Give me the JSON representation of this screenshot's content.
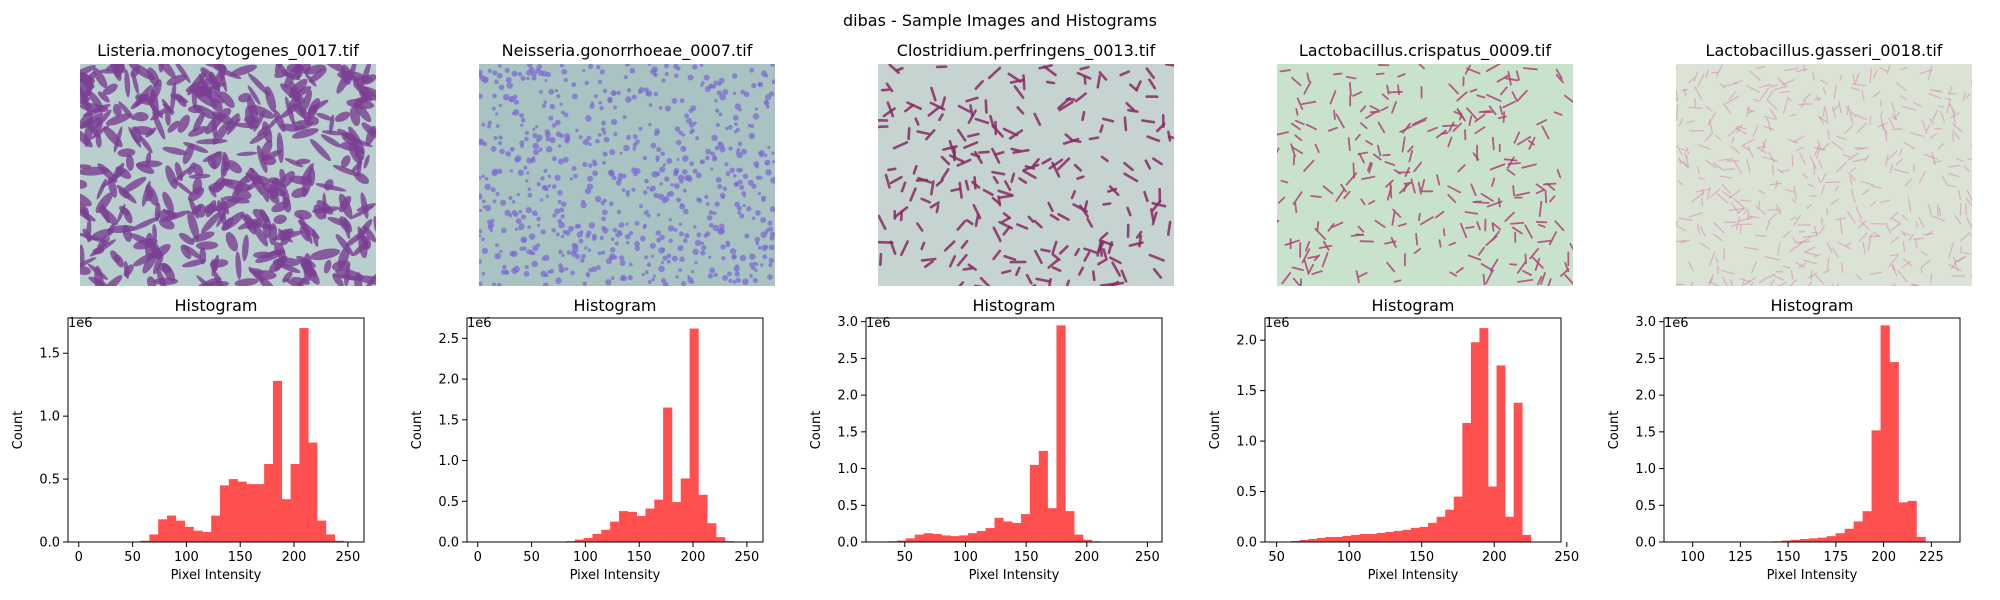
{
  "figure_title": "dibas - Sample Images and Histograms",
  "panels": [
    {
      "image_title": "Listeria.monocytogenes_0017.tif",
      "image_style": {
        "bg": "#b9cfcd",
        "stain": "#7a3f92",
        "pattern": "network"
      },
      "chart_data": {
        "type": "bar",
        "title": "Histogram",
        "xlabel": "Pixel Intensity",
        "ylabel": "Count",
        "y_scale_label": "1e6",
        "bar_color": "#ff4c4c",
        "xlim": [
          -10,
          265
        ],
        "ylim": [
          0,
          1.78
        ],
        "xticks": [
          0,
          50,
          100,
          150,
          200,
          250
        ],
        "yticks": [
          0.0,
          0.5,
          1.0,
          1.5
        ],
        "bin_start": 0,
        "bin_width": 8.2,
        "values": [
          0,
          0,
          0,
          0,
          0,
          0,
          0,
          0.01,
          0.06,
          0.18,
          0.21,
          0.17,
          0.12,
          0.09,
          0.08,
          0.21,
          0.45,
          0.5,
          0.48,
          0.46,
          0.46,
          0.62,
          1.28,
          0.34,
          0.62,
          1.7,
          0.79,
          0.17,
          0.06,
          0.01,
          0
        ]
      }
    },
    {
      "image_title": "Neisseria.gonorrhoeae_0007.tif",
      "image_style": {
        "bg": "#a8c3c2",
        "stain": "#7d6bd1",
        "pattern": "dots"
      },
      "chart_data": {
        "type": "bar",
        "title": "Histogram",
        "xlabel": "Pixel Intensity",
        "ylabel": "Count",
        "y_scale_label": "1e6",
        "bar_color": "#ff4c4c",
        "xlim": [
          -10,
          265
        ],
        "ylim": [
          0,
          2.75
        ],
        "xticks": [
          0,
          50,
          100,
          150,
          200,
          250
        ],
        "yticks": [
          0.0,
          0.5,
          1.0,
          1.5,
          2.0,
          2.5
        ],
        "bin_start": 0,
        "bin_width": 8.2,
        "values": [
          0,
          0,
          0,
          0,
          0,
          0,
          0,
          0,
          0,
          0,
          0.01,
          0.03,
          0.05,
          0.1,
          0.15,
          0.25,
          0.38,
          0.37,
          0.32,
          0.41,
          0.52,
          1.65,
          0.49,
          0.78,
          2.62,
          0.58,
          0.23,
          0.06,
          0.01,
          0,
          0
        ]
      }
    },
    {
      "image_title": "Clostridium.perfringens_0013.tif",
      "image_style": {
        "bg": "#c5d3d1",
        "stain": "#8a2a63",
        "pattern": "rods"
      },
      "chart_data": {
        "type": "bar",
        "title": "Histogram",
        "xlabel": "Pixel Intensity",
        "ylabel": "Count",
        "y_scale_label": "1e6",
        "bar_color": "#ff4c4c",
        "xlim": [
          18,
          262
        ],
        "ylim": [
          0,
          3.05
        ],
        "xticks": [
          50,
          100,
          150,
          200,
          250
        ],
        "yticks": [
          0.0,
          0.5,
          1.0,
          1.5,
          2.0,
          2.5,
          3.0
        ],
        "bin_start": 29,
        "bin_width": 7.3,
        "values": [
          0,
          0.01,
          0.02,
          0.05,
          0.1,
          0.12,
          0.11,
          0.09,
          0.08,
          0.09,
          0.12,
          0.15,
          0.19,
          0.33,
          0.28,
          0.26,
          0.38,
          1.05,
          1.24,
          0.46,
          2.95,
          0.42,
          0.1,
          0.03,
          0.01,
          0,
          0,
          0,
          0,
          0
        ]
      }
    },
    {
      "image_title": "Lactobacillus.crispatus_0009.tif",
      "image_style": {
        "bg": "#c9e2cb",
        "stain": "#b04276",
        "pattern": "rods-sparse"
      },
      "chart_data": {
        "type": "bar",
        "title": "Histogram",
        "xlabel": "Pixel Intensity",
        "ylabel": "Count",
        "y_scale_label": "1e6",
        "bar_color": "#ff4c4c",
        "xlim": [
          42,
          246
        ],
        "ylim": [
          0,
          2.22
        ],
        "xticks": [
          50,
          100,
          150,
          200,
          250
        ],
        "yticks": [
          0.0,
          0.5,
          1.0,
          1.5,
          2.0
        ],
        "bin_start": 60,
        "bin_width": 5.9,
        "values": [
          0.01,
          0.02,
          0.03,
          0.04,
          0.05,
          0.05,
          0.06,
          0.07,
          0.08,
          0.08,
          0.09,
          0.1,
          0.11,
          0.12,
          0.14,
          0.15,
          0.19,
          0.25,
          0.32,
          0.45,
          1.18,
          1.98,
          2.12,
          0.55,
          1.75,
          0.25,
          1.38,
          0.07
        ]
      }
    },
    {
      "image_title": "Lactobacillus.gasseri_0018.tif",
      "image_style": {
        "bg": "#dbe3d4",
        "stain": "#d77aad",
        "pattern": "faint"
      },
      "chart_data": {
        "type": "bar",
        "title": "Histogram",
        "xlabel": "Pixel Intensity",
        "ylabel": "Count",
        "y_scale_label": "1e6",
        "bar_color": "#ff4c4c",
        "xlim": [
          85,
          240
        ],
        "ylim": [
          0,
          3.05
        ],
        "xticks": [
          100,
          125,
          150,
          175,
          200,
          225
        ],
        "yticks": [
          0.0,
          0.5,
          1.0,
          1.5,
          2.0,
          2.5,
          3.0
        ],
        "bin_start": 95,
        "bin_width": 4.7,
        "values": [
          0,
          0,
          0,
          0,
          0,
          0,
          0,
          0,
          0,
          0,
          0.01,
          0.02,
          0.03,
          0.04,
          0.05,
          0.06,
          0.08,
          0.12,
          0.18,
          0.28,
          0.42,
          1.52,
          2.95,
          2.45,
          0.54,
          0.56,
          0.07,
          0
        ]
      }
    }
  ]
}
